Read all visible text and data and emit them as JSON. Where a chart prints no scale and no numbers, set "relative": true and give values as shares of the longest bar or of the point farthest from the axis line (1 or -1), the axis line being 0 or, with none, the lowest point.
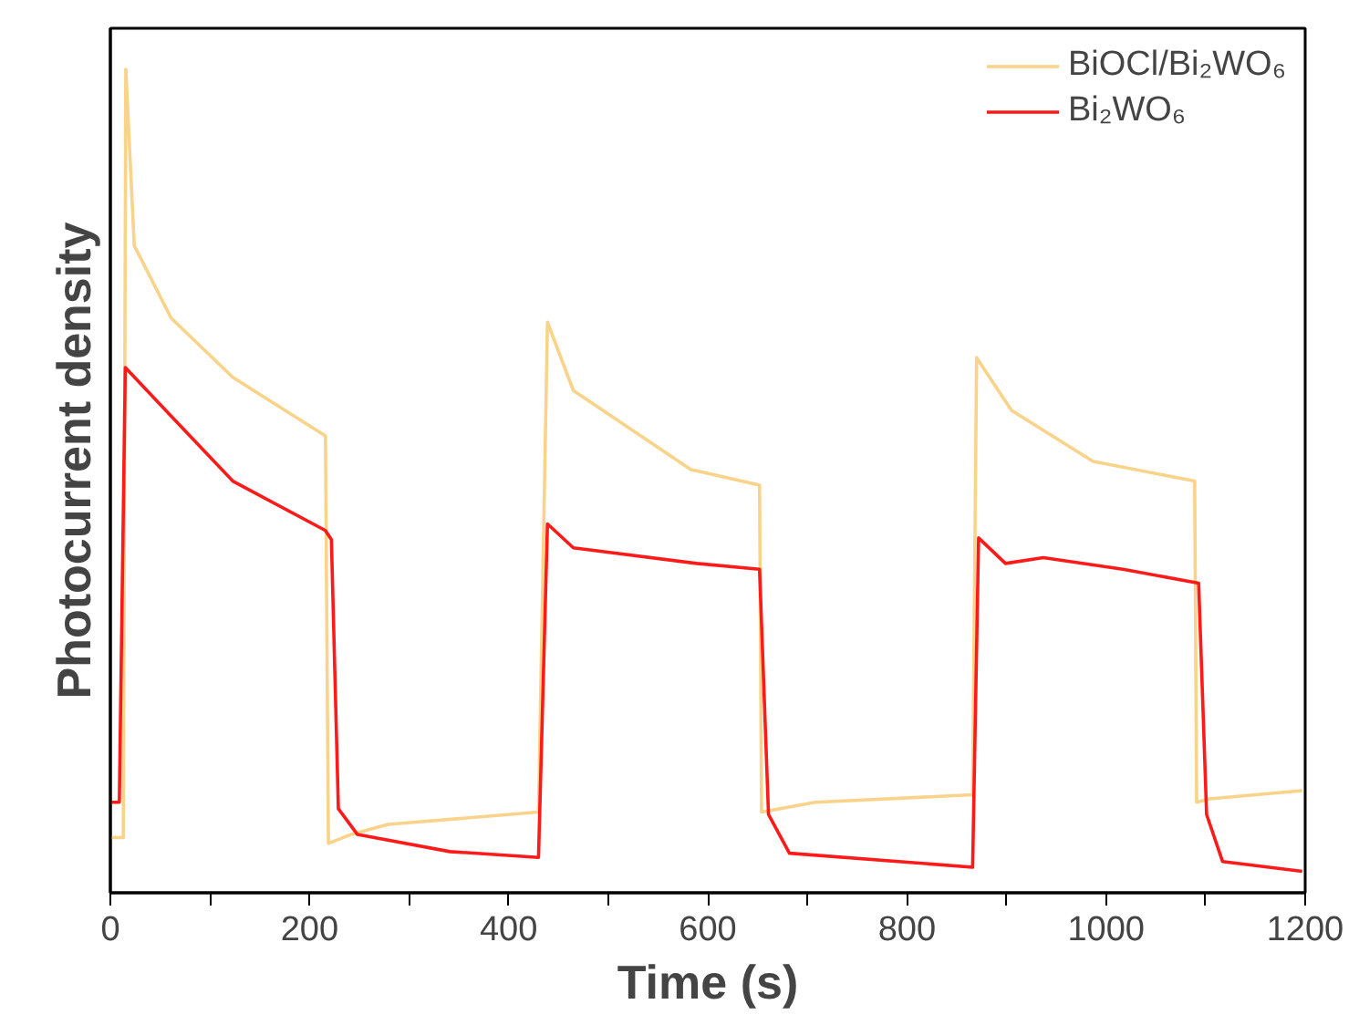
{
  "chart_data": {
    "type": "line",
    "xlabel": "Time (s)",
    "ylabel": "Photocurrent density",
    "relative": true,
    "xlim": [
      0,
      1200
    ],
    "xticks": [
      0,
      {
        "value": 100,
        "label": null
      },
      200,
      {
        "value": 300,
        "label": null
      },
      400,
      {
        "value": 500,
        "label": null
      },
      600,
      {
        "value": 700,
        "label": null
      },
      800,
      {
        "value": 900,
        "label": null
      },
      1000,
      {
        "value": 1100,
        "label": null
      },
      1200
    ],
    "legend": "top right",
    "grid": false,
    "line_style": "solid",
    "marker": "none",
    "series": [
      {
        "name": "BiOCl/Bi₂WO₆",
        "color": "#f9d38a",
        "x": [
          0,
          13,
          15.5,
          24,
          61,
          123,
          216,
          219,
          242,
          279,
          430,
          439,
          465,
          583,
          652,
          654,
          708,
          866,
          870,
          905,
          987,
          1089,
          1091,
          1104,
          1197
        ],
        "values": [
          0.067,
          0.067,
          1.0,
          0.786,
          0.698,
          0.626,
          0.555,
          0.06,
          0.071,
          0.083,
          0.098,
          0.693,
          0.61,
          0.514,
          0.495,
          0.098,
          0.11,
          0.119,
          0.65,
          0.586,
          0.524,
          0.5,
          0.11,
          0.114,
          0.124
        ]
      },
      {
        "name": "Bi₂WO₆",
        "color": "#ff1a1a",
        "x": [
          0,
          9,
          15,
          61,
          123,
          216,
          222,
          229,
          248,
          341,
          430,
          439,
          465,
          589,
          652,
          661,
          682,
          866,
          872,
          899,
          937,
          1017,
          1093,
          1101,
          1117,
          1197
        ],
        "values": [
          0.11,
          0.11,
          0.638,
          0.579,
          0.5,
          0.44,
          0.429,
          0.102,
          0.071,
          0.05,
          0.043,
          0.448,
          0.419,
          0.4,
          0.393,
          0.095,
          0.048,
          0.031,
          0.431,
          0.4,
          0.407,
          0.393,
          0.376,
          0.095,
          0.038,
          0.026
        ]
      }
    ]
  }
}
